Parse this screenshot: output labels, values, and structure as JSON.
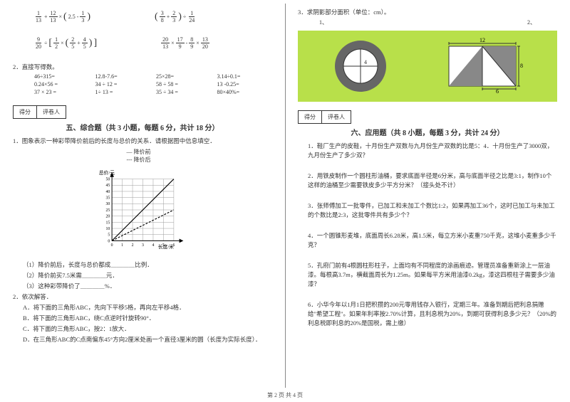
{
  "math_expressions": {
    "e1_parts": [
      "1",
      "13",
      "+",
      "12",
      "13",
      "×",
      "(",
      "2.5",
      "-",
      "1",
      "3",
      ")"
    ],
    "e2_parts": [
      "(",
      "3",
      "8",
      "+",
      "2",
      "3",
      ")",
      "÷",
      "1",
      "24"
    ],
    "e3_parts": [
      "9",
      "20",
      "÷",
      "[",
      "1",
      "2",
      "×",
      "(",
      "2",
      "5",
      "+",
      "4",
      "5",
      ")",
      "]"
    ],
    "e4_parts": [
      "20",
      "13",
      "×",
      "17",
      "9",
      "-",
      "8",
      "9",
      "×",
      "13",
      "20"
    ]
  },
  "q2_title": "2．直接写得数。",
  "calc": [
    "46÷315=",
    "12.8-7.6=",
    "25×28=",
    "3.14÷0.1=",
    "0.24×56 =",
    "34 ÷ 12 =",
    "58 ÷ 58 =",
    "13 -0.25=",
    "37 × 23 =",
    "1÷ 13 =",
    "35 ÷ 34 =",
    "80×40%="
  ],
  "score_labels": {
    "a": "得分",
    "b": "评卷人"
  },
  "section5": {
    "title": "五、综合题（共 3 小题，每题 6 分，共计 18 分）",
    "q1": "1．图象表示一种彩带降价前后的长度与总价的关系．请根据图中信息填空．",
    "legend_a": "— 降价前",
    "legend_b": "--- 降价后",
    "chart": {
      "ylabel": "总价/元",
      "xlabel": "长度/米",
      "ymax": 50,
      "ystep": 5,
      "xmax": 6,
      "xstep": 1,
      "line_before": [
        [
          0,
          0
        ],
        [
          6,
          48
        ]
      ],
      "line_after": [
        [
          0,
          0
        ],
        [
          6,
          30
        ]
      ],
      "grid_color": "#999",
      "before_color": "#000",
      "after_color": "#000"
    },
    "sub1": "（1）降价前后，长度与总价都成＿＿＿＿比例．",
    "sub2": "（2）降价前买7.5米需＿＿＿＿元．",
    "sub3": "（3）这种彩带降价了＿＿＿＿%．",
    "q2": "2．依次解答．",
    "q2a": "A．将下面的三角形ABC，先向下平移5格，再向左平移4格．",
    "q2b": "B．将下面的三角形ABC，绕C点逆时针旋转90°．",
    "q2c": "C．将下面的三角形ABC，按2：1放大．",
    "q2d": "D．在三角形ABC的C点南偏东45°方向2厘米处画一个直径3厘米的圆（长度为实际长度）．"
  },
  "right": {
    "q3": "3．求阴影部分面积（单位：cm）。",
    "labels": {
      "one": "1、",
      "two": "2、"
    },
    "fig1": {
      "outer_r": 40,
      "inner_d_label": "4",
      "fill": "#ffffff",
      "ring": "#555"
    },
    "fig2": {
      "w_label": "12",
      "h_label": "8",
      "b_label": "6"
    },
    "section6_title": "六、应用题（共 8 小题，每题 3 分，共计 24 分）",
    "p1": "1．鞋厂生产的皮鞋，十月份生产双数与九月份生产双数的比是5：4．十月份生产了3000双，九月份生产了多少双？",
    "p2": "2．用铁皮制作一个圆柱形油桶，要求底面半径是6分米，高与底面半径之比是3:1，制作10个这样的油桶至少需要铁皮多少平方分米？（接头处不计）",
    "p3": "3．张师傅加工一批零件，已加工和未加工个数比1:2，如果再加工36个，这时已加工与未加工的个数比是2:3，这批零件共有多少个？",
    "p4": "4．一个圆锥形麦堆，底面周长6.28米，高1.5米，每立方米小麦重750千克，这堆小麦重多少千克？",
    "p5": "5．孔府门前有4根圆柱形柱子，上面均有不同程度的涂画痕迹。管理员准备重新涂上一层油漆。每根高3.7m，横截面周长为1.25m。如果每平方米用油漆0.2kg，漆这四根柱子需要多少油漆？",
    "p6": "6．小华今年以1月1日把积攒的200元零用钱存入银行，定期三年。准备到期后把利息捐赠给\"希望工程\"。如果年利率按2.70%计算，且利息税为20%，到期可获得利息多少元？（20%的利息税即利息的20%是国税，需上缴）"
  },
  "footer": "第 2 页 共 4 页"
}
